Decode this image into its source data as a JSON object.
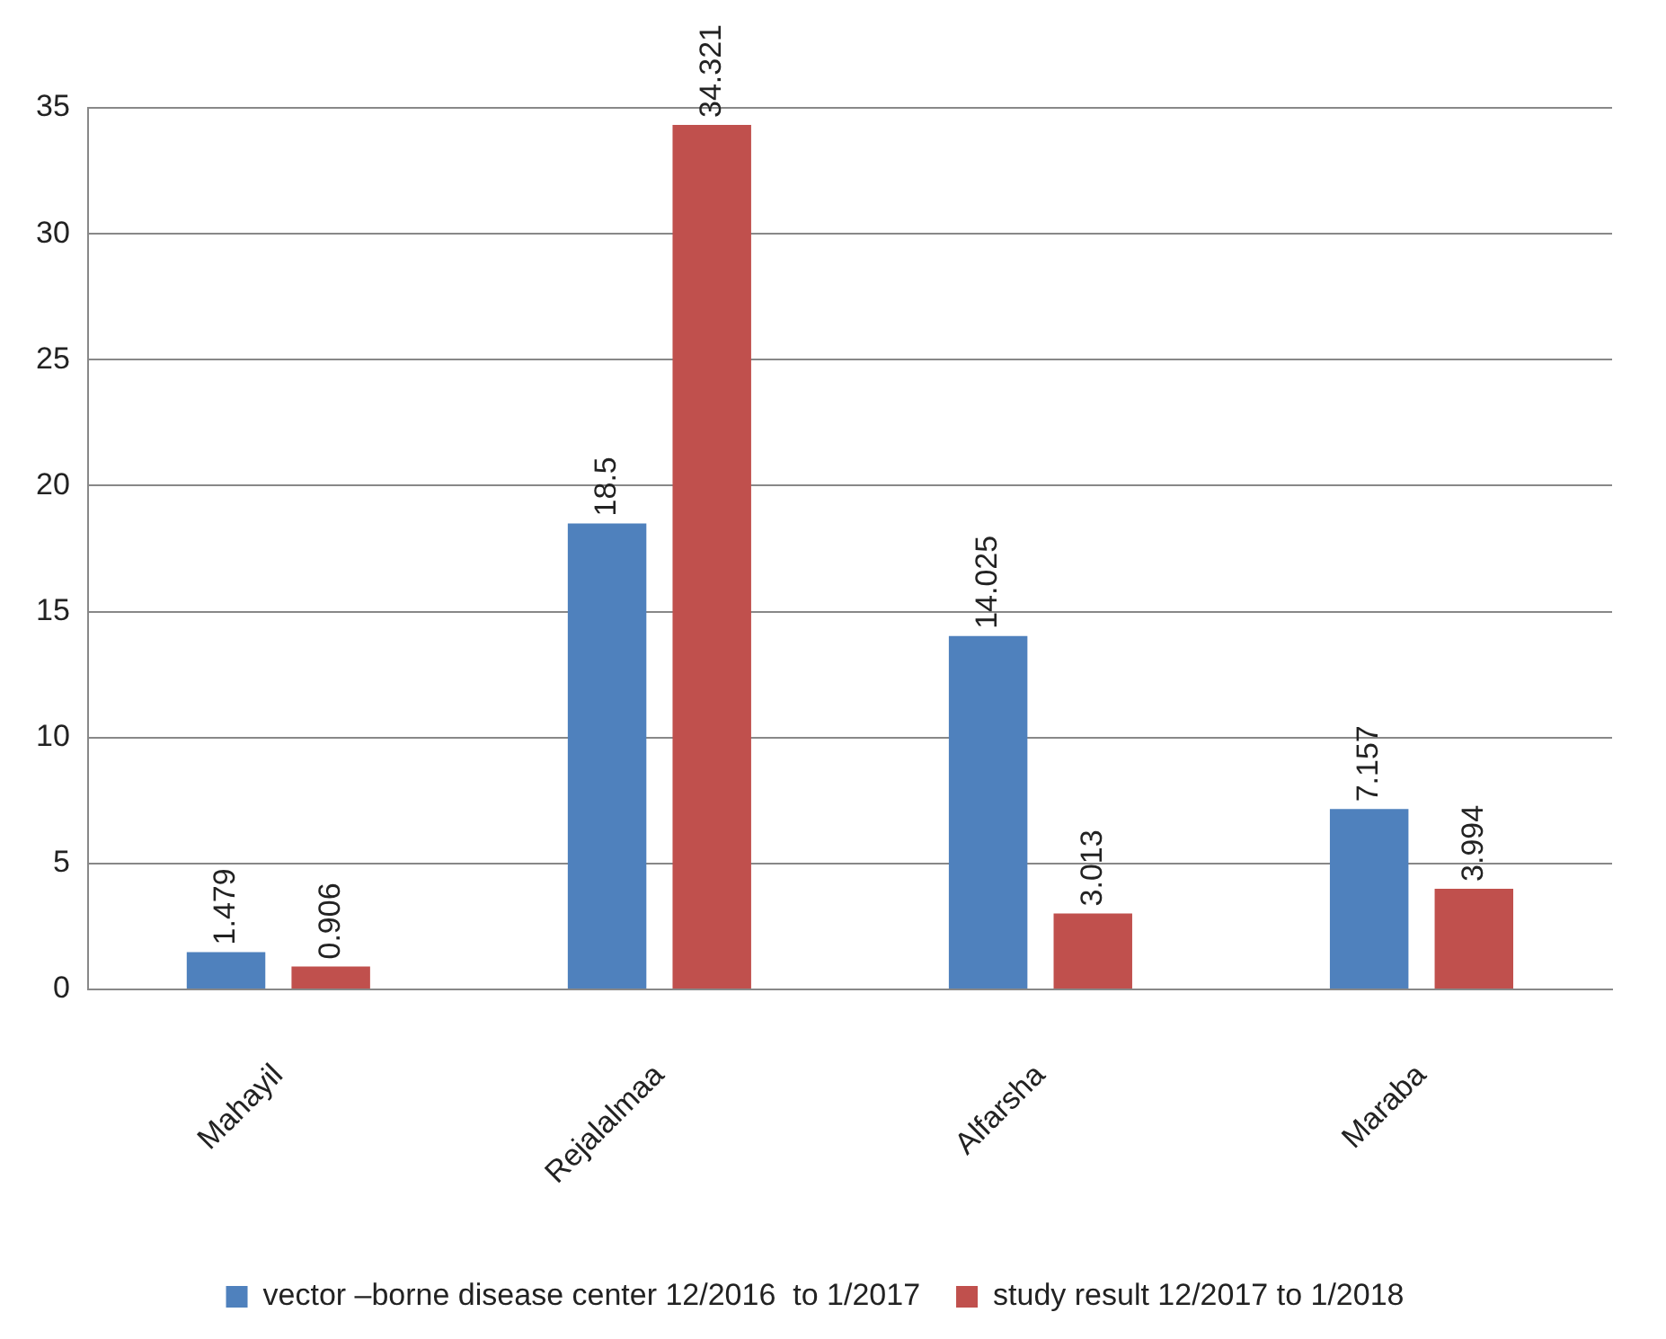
{
  "chart_data": {
    "type": "bar",
    "categories": [
      "Mahayil",
      "Rejalalmaa",
      "Alfarsha",
      "Maraba"
    ],
    "series": [
      {
        "name": "vector –borne disease center 12/2016  to 1/2017",
        "color": "#4f81bd",
        "values": [
          1.479,
          18.5,
          14.025,
          7.157
        ]
      },
      {
        "name": "study result 12/2017 to 1/2018",
        "color": "#c0504d",
        "values": [
          0.906,
          34.321,
          3.013,
          3.994
        ]
      }
    ],
    "ylim": [
      0,
      35
    ],
    "yticks": [
      0,
      5,
      10,
      15,
      20,
      25,
      30,
      35
    ],
    "grid": "y",
    "legend": "bottom",
    "data_labels": true
  }
}
